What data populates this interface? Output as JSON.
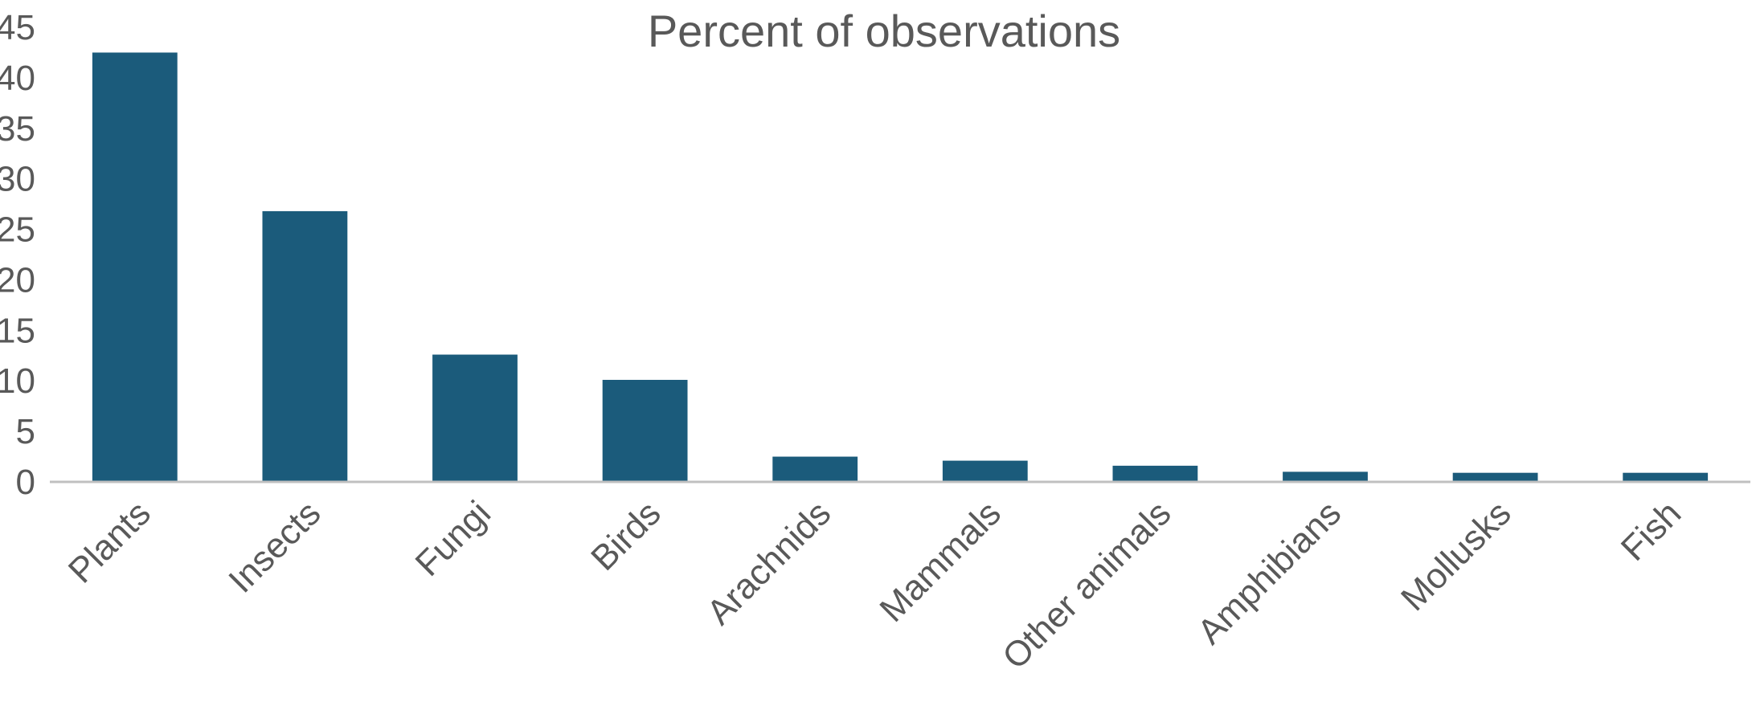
{
  "chart_data": {
    "type": "bar",
    "title": "Percent of observations",
    "xlabel": "",
    "ylabel": "",
    "categories": [
      "Plants",
      "Insects",
      "Fungi",
      "Birds",
      "Arachnids",
      "Mammals",
      "Other animals",
      "Amphibians",
      "Mollusks",
      "Fish"
    ],
    "values": [
      42.5,
      26.8,
      12.6,
      10.1,
      2.5,
      2.1,
      1.6,
      1.0,
      0.9,
      0.9
    ],
    "ylim": [
      0,
      45
    ],
    "yticks": [
      0,
      5,
      10,
      15,
      20,
      25,
      30,
      35,
      40,
      45
    ],
    "bar_color": "#1b5b7b",
    "axis_color": "#c0c0c0",
    "text_color": "#595959",
    "grid": false,
    "legend": "none"
  }
}
